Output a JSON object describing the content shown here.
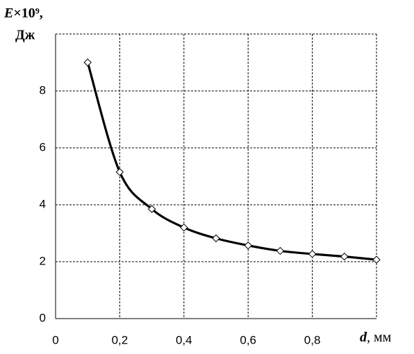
{
  "chart_data": {
    "type": "line",
    "y_label": {
      "symbol": "E",
      "factor": "×10⁹,",
      "unit": "Дж"
    },
    "x_label": {
      "symbol": "d",
      "unit": ", мм"
    },
    "x": [
      0.1,
      0.2,
      0.3,
      0.4,
      0.5,
      0.6,
      0.7,
      0.8,
      0.9,
      1.0
    ],
    "series": [
      {
        "color": "#000000",
        "values": [
          9.0,
          5.15,
          3.85,
          3.2,
          2.82,
          2.57,
          2.38,
          2.27,
          2.18,
          2.07
        ]
      }
    ],
    "xlim": [
      0,
      1
    ],
    "ylim": [
      0,
      10
    ],
    "xticks": [
      0,
      {
        "value": 0.2,
        "label": "0,2"
      },
      {
        "value": 0.4,
        "label": "0,4"
      },
      {
        "value": 0.6,
        "label": "0,6"
      },
      {
        "value": 0.8,
        "label": "0,8"
      }
    ],
    "yticks": [
      0,
      2,
      4,
      6,
      8
    ],
    "grid": true,
    "marker": "diamond"
  }
}
